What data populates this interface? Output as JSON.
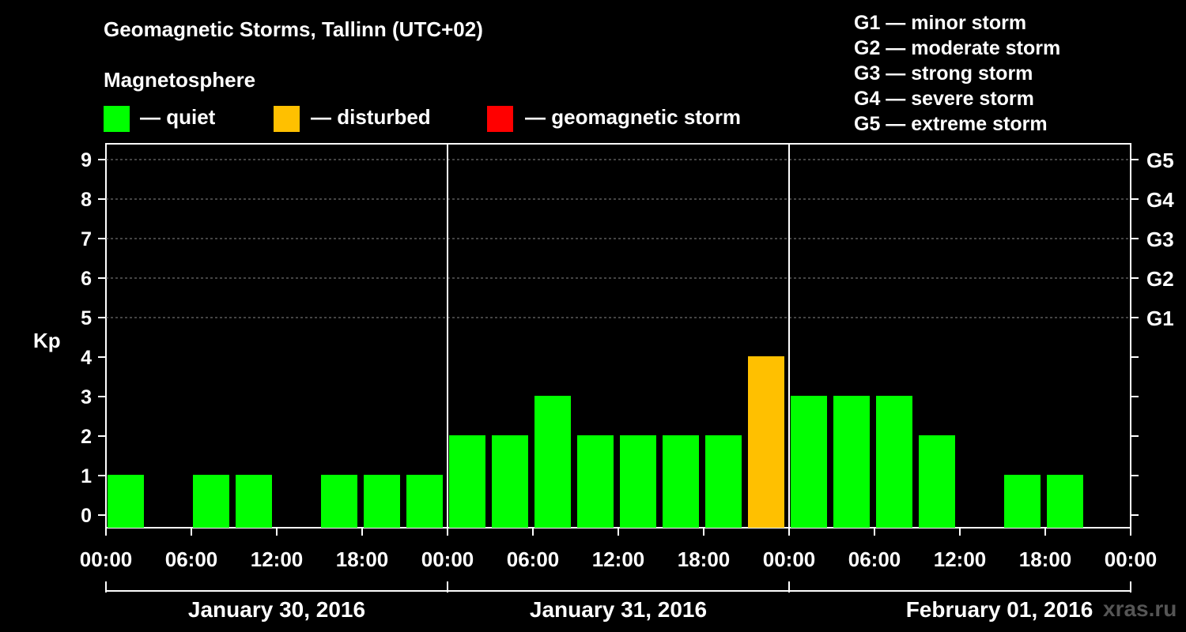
{
  "title": "Geomagnetic Storms, Tallinn (UTC+02)",
  "subtitle": "Magnetosphere",
  "legend": [
    {
      "label": "— quiet",
      "color": "#00ff00"
    },
    {
      "label": "— disturbed",
      "color": "#ffc000"
    },
    {
      "label": "— geomagnetic storm",
      "color": "#ff0000"
    }
  ],
  "g_legend": [
    "G1 — minor storm",
    "G2 — moderate storm",
    "G3 — strong storm",
    "G4 — severe storm",
    "G5 — extreme storm"
  ],
  "watermark": "xras.ru",
  "chart_data": {
    "type": "bar",
    "ylabel": "Kp",
    "ylim": [
      0,
      9
    ],
    "yticks": [
      "0",
      "1",
      "2",
      "3",
      "4",
      "5",
      "6",
      "7",
      "8",
      "9"
    ],
    "right_ticks": [
      {
        "kp": 5,
        "label": "G1"
      },
      {
        "kp": 6,
        "label": "G2"
      },
      {
        "kp": 7,
        "label": "G3"
      },
      {
        "kp": 8,
        "label": "G4"
      },
      {
        "kp": 9,
        "label": "G5"
      }
    ],
    "xticks": [
      "00:00",
      "06:00",
      "12:00",
      "18:00",
      "00:00",
      "06:00",
      "12:00",
      "18:00",
      "00:00",
      "06:00",
      "12:00",
      "18:00",
      "00:00"
    ],
    "days": [
      "January 30, 2016",
      "January 31, 2016",
      "February 01, 2016"
    ],
    "interval_hours": 3,
    "values": [
      1,
      0,
      1,
      1,
      0,
      1,
      1,
      1,
      2,
      2,
      3,
      2,
      2,
      2,
      2,
      4,
      3,
      3,
      3,
      2,
      0,
      1,
      1
    ],
    "colors": {
      "quiet": "#00ff00",
      "disturbed": "#ffc000",
      "storm": "#ff0000"
    },
    "grid": "dashed at Kp 5-9",
    "legend_position": "top"
  }
}
